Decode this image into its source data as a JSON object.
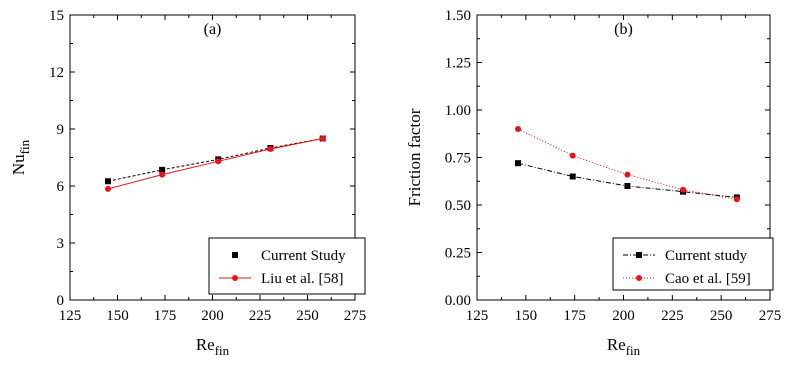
{
  "chart_data": [
    {
      "type": "line",
      "panel_label": "(a)",
      "ylabel_main": "Nu",
      "ylabel_sub": "fin",
      "xlabel_main": "Re",
      "xlabel_sub": "fin",
      "xlim": [
        125,
        275
      ],
      "ylim": [
        0,
        15
      ],
      "xticks": [
        "125",
        "150",
        "175",
        "200",
        "225",
        "250",
        "275"
      ],
      "yticks": [
        "0",
        "3",
        "6",
        "9",
        "12",
        "15"
      ],
      "legend_position": "bottom-right",
      "series": [
        {
          "name": "Current Study",
          "color": "#000000",
          "marker": "square",
          "dash": "3,2",
          "x": [
            145,
            173.5,
            203,
            230.5,
            258
          ],
          "y": [
            6.25,
            6.85,
            7.4,
            8.0,
            8.5
          ]
        },
        {
          "name": "Liu et al. [58]",
          "color": "#e8141b",
          "marker": "circle",
          "dash": "",
          "x": [
            145,
            173.5,
            203,
            230.5,
            258
          ],
          "y": [
            5.85,
            6.6,
            7.3,
            7.95,
            8.5
          ]
        }
      ]
    },
    {
      "type": "line",
      "panel_label": "(b)",
      "ylabel_main": "Friction factor",
      "ylabel_sub": "",
      "xlabel_main": "Re",
      "xlabel_sub": "fin",
      "xlim": [
        125,
        275
      ],
      "ylim": [
        0,
        1.5
      ],
      "xticks": [
        "125",
        "150",
        "175",
        "200",
        "225",
        "250",
        "275"
      ],
      "yticks": [
        "0.00",
        "0.25",
        "0.50",
        "0.75",
        "1.00",
        "1.25",
        "1.50"
      ],
      "legend_position": "bottom-right",
      "series": [
        {
          "name": "Current study",
          "color": "#000000",
          "marker": "square",
          "dash": "5,2,1,2",
          "x": [
            146,
            174,
            202,
            230.5,
            258
          ],
          "y": [
            0.72,
            0.65,
            0.6,
            0.57,
            0.54
          ]
        },
        {
          "name": "Cao et al. [59]",
          "color": "#e8141b",
          "marker": "circle",
          "dash": "1,2",
          "x": [
            146,
            174,
            202,
            230.5,
            258
          ],
          "y": [
            0.9,
            0.76,
            0.66,
            0.58,
            0.53
          ]
        }
      ]
    }
  ]
}
